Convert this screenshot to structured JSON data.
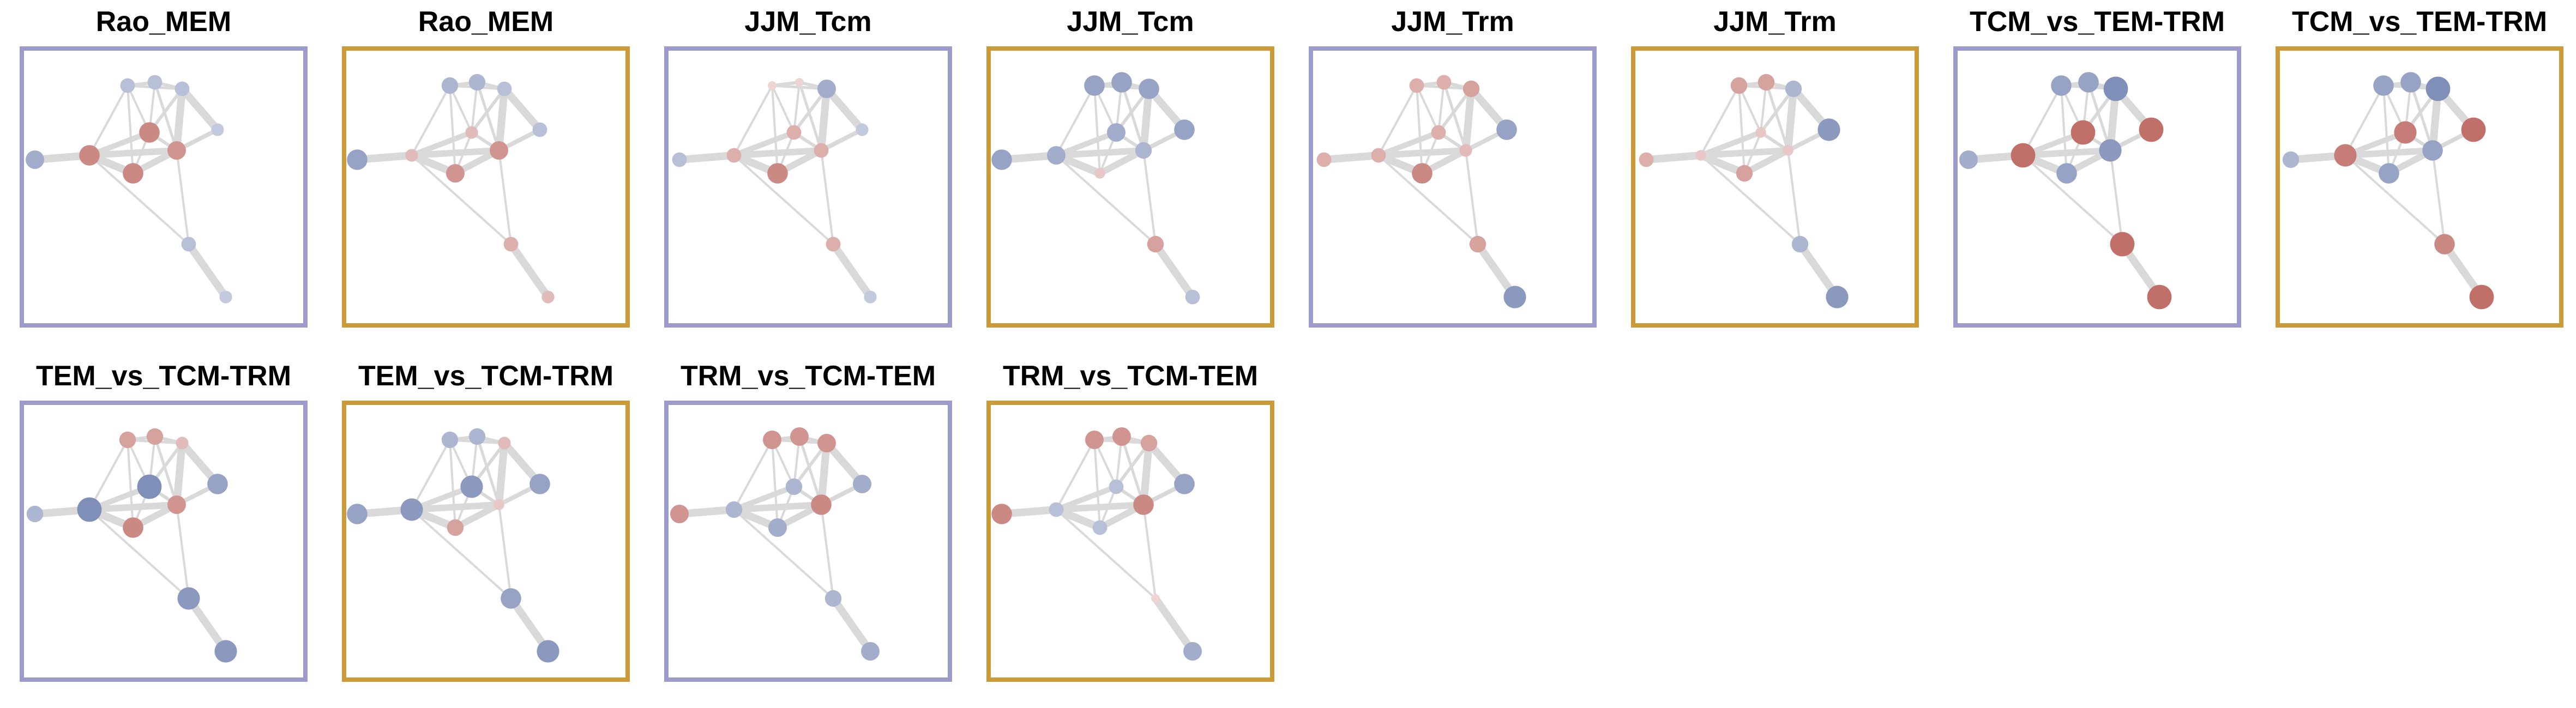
{
  "colors": {
    "frame_a": "#9b9bcc",
    "frame_b": "#cc9b37",
    "edge": "#d9d9d9",
    "pos_dark": "#b5564f",
    "pos_light": "#e0b2a9",
    "neg_dark": "#6a7bab",
    "neg_light": "#b6bed9"
  },
  "panels": [
    {
      "title": "Rao_MEM",
      "frame": "a",
      "values": [
        -0.3,
        -0.3,
        -0.5,
        0.6,
        0.5,
        -0.2,
        0.6,
        0.5,
        -0.3,
        -0.2
      ]
    },
    {
      "title": "Rao_MEM",
      "frame": "b",
      "values": [
        -0.3,
        -0.4,
        -0.6,
        0.2,
        0.5,
        -0.3,
        0.5,
        0.4,
        0.3,
        0.2
      ]
    },
    {
      "title": "JJM_Tcm",
      "frame": "a",
      "values": [
        -0.5,
        0,
        -0.3,
        0.3,
        0.3,
        -0.2,
        0.6,
        0.6,
        0.3,
        -0.2
      ]
    },
    {
      "title": "JJM_Tcm",
      "frame": "b",
      "values": [
        -0.6,
        -0.6,
        -0.6,
        -0.5,
        -0.4,
        -0.6,
        0.1,
        0.1,
        0.4,
        -0.3
      ]
    },
    {
      "title": "JJM_Trm",
      "frame": "a",
      "values": [
        0.4,
        0.3,
        0.3,
        0.3,
        0.2,
        -0.6,
        0.6,
        -0.3,
        0.4,
        -0.7
      ]
    },
    {
      "title": "JJM_Trm",
      "frame": "b",
      "values": [
        -0.4,
        0.4,
        0.3,
        0.1,
        0.1,
        -0.7,
        0.4,
        0,
        -0.4,
        -0.7
      ]
    },
    {
      "title": "TCM_vs_TEM-TRM",
      "frame": "a",
      "values": [
        -0.8,
        -0.6,
        -0.5,
        0.8,
        -0.7,
        0.8,
        -0.6,
        -0.8,
        0.8,
        0.8
      ]
    },
    {
      "title": "TCM_vs_TEM-TRM",
      "frame": "b",
      "values": [
        -0.8,
        -0.6,
        -0.4,
        0.7,
        -0.6,
        0.8,
        -0.6,
        -0.5,
        0.6,
        0.8
      ]
    },
    {
      "title": "TEM_vs_TCM-TRM",
      "frame": "a",
      "values": [
        0.2,
        0.4,
        -0.4,
        -0.8,
        0.5,
        -0.6,
        0.6,
        0.9,
        -0.7,
        -0.7
      ]
    },
    {
      "title": "TEM_vs_TCM-TRM",
      "frame": "b",
      "values": [
        0.2,
        -0.4,
        -0.6,
        -0.7,
        0.1,
        -0.6,
        0.4,
        0.5,
        -0.6,
        -0.7
      ]
    },
    {
      "title": "TRM_vs_TCM-TEM",
      "frame": "a",
      "values": [
        0.5,
        0.5,
        0.5,
        -0.4,
        0.6,
        -0.5,
        -0.5,
        -0.5,
        -0.4,
        -0.5
      ]
    },
    {
      "title": "TRM_vs_TCM-TEM",
      "frame": "b",
      "values": [
        0.4,
        0.5,
        0.6,
        -0.3,
        0.6,
        -0.6,
        -0.3,
        0.2,
        0,
        -0.5
      ]
    }
  ]
}
